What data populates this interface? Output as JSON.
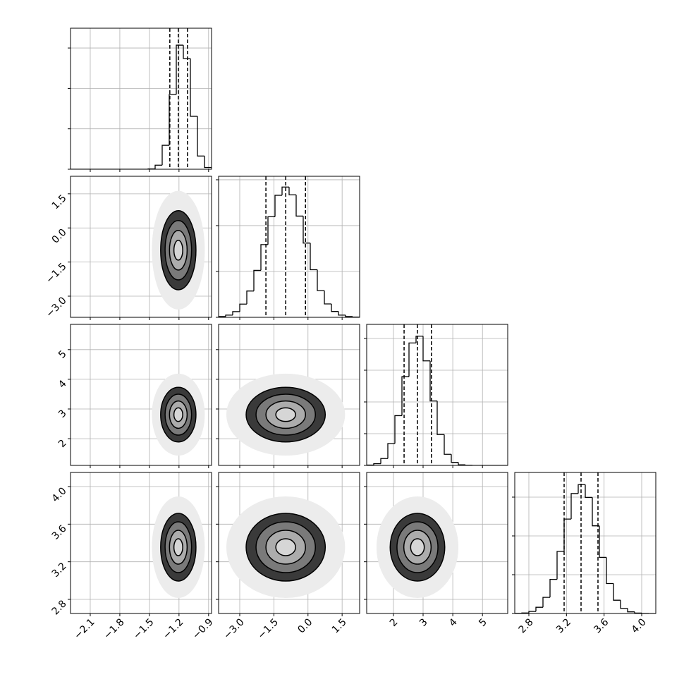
{
  "chart_data": {
    "type": "corner",
    "levels": [
      0.5,
      1,
      1.5,
      2
    ],
    "grid": true,
    "color": "#000000",
    "parameters": [
      {
        "xlim": [
          -2.3,
          -0.87
        ],
        "xticks": [
          {
            "value": -2.1,
            "label": "−2.1"
          },
          {
            "value": -1.8,
            "label": "−1.8"
          },
          {
            "value": -1.5,
            "label": "−1.5"
          },
          {
            "value": -1.2,
            "label": "−1.2"
          },
          {
            "value": -0.9,
            "label": "−0.9"
          }
        ],
        "quantiles": [
          -1.293,
          -1.207,
          -1.114
        ],
        "bins": [
          -2.3,
          -2.2285,
          -2.157,
          -2.0855,
          -2.014,
          -1.9425,
          -1.871,
          -1.7995,
          -1.728,
          -1.6565,
          -1.585,
          -1.5135,
          -1.442,
          -1.3705,
          -1.299,
          -1.2275,
          -1.156,
          -1.0845,
          -1.013,
          -0.9415,
          -0.87
        ],
        "counts": [
          0,
          0,
          0,
          0,
          0,
          0,
          0,
          0,
          0,
          0,
          0,
          9,
          100,
          592,
          1850,
          3070,
          2740,
          1310,
          327,
          43
        ],
        "ylim": [
          0,
          3490
        ],
        "yticks": [
          0,
          1000,
          2000,
          3000
        ]
      },
      {
        "xlim": [
          -3.93,
          2.27
        ],
        "xticks": [
          {
            "value": -3.0,
            "label": "−3.0"
          },
          {
            "value": -1.5,
            "label": "−1.5"
          },
          {
            "value": 0,
            "label": "0.0"
          },
          1.5
        ],
        "quantiles": [
          -1.85,
          -0.98,
          -0.11
        ],
        "bins": [
          -3.93,
          -3.62,
          -3.31,
          -3.0,
          -2.69,
          -2.38,
          -2.07,
          -1.76,
          -1.45,
          -1.14,
          -0.83,
          -0.52,
          -0.21,
          0.1,
          0.41,
          0.72,
          1.03,
          1.34,
          1.65,
          1.96,
          2.27
        ],
        "counts": [
          8,
          24,
          62,
          144,
          287,
          512,
          793,
          1097,
          1331,
          1421,
          1336,
          1104,
          810,
          519,
          291,
          146,
          64,
          24,
          8,
          3
        ],
        "ylim": [
          0,
          1538
        ],
        "yticks": [
          0,
          500,
          1000,
          1500
        ]
      },
      {
        "xlim": [
          1.1,
          5.85
        ],
        "xticks": [
          2,
          3,
          4,
          5
        ],
        "quantiles": [
          2.36,
          2.81,
          3.28
        ],
        "bins": [
          1.1,
          1.3375,
          1.575,
          1.8125,
          2.05,
          2.2875,
          2.525,
          2.7625,
          3.0,
          3.2375,
          3.475,
          3.7125,
          3.95,
          4.1875,
          4.425,
          4.6625,
          4.9,
          5.1375,
          5.375,
          5.6125,
          5.85
        ],
        "counts": [
          5,
          27,
          108,
          344,
          784,
          1398,
          1929,
          2036,
          1647,
          1015,
          486,
          175,
          48,
          10,
          2,
          0,
          0,
          0,
          0,
          0
        ],
        "ylim": [
          0,
          2222
        ],
        "yticks": [
          0,
          500,
          1000,
          1500,
          2000
        ]
      },
      {
        "xlim": [
          2.65,
          4.15
        ],
        "xticks": [
          2.8,
          3.2,
          3.6,
          {
            "value": 4,
            "label": "4.0"
          }
        ],
        "quantiles": [
          3.175,
          3.355,
          3.535
        ],
        "bins": [
          2.65,
          2.725,
          2.8,
          2.875,
          2.95,
          3.025,
          3.1,
          3.175,
          3.25,
          3.325,
          3.4,
          3.475,
          3.55,
          3.625,
          3.7,
          3.775,
          3.85,
          3.925,
          4.0,
          4.075,
          4.15
        ],
        "counts": [
          2,
          7,
          26,
          80,
          208,
          440,
          800,
          1217,
          1546,
          1661,
          1496,
          1130,
          723,
          386,
          171,
          66,
          21,
          5,
          1,
          0
        ],
        "ylim": [
          0,
          1818
        ],
        "yticks": [
          0,
          500,
          1000,
          1500
        ]
      }
    ]
  }
}
